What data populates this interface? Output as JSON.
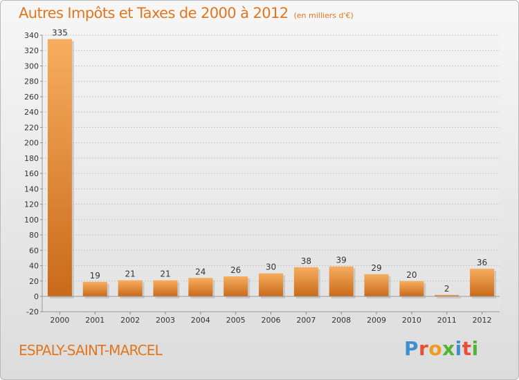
{
  "title": "Autres Impôts et Taxes de 2000 à 2012",
  "unit_note": "(en milliers d'€)",
  "city": "ESPALY-SAINT-MARCEL",
  "logo": {
    "text": "Proxiti",
    "letters": [
      "P",
      "r",
      "o",
      "x",
      "i",
      "t",
      "i"
    ]
  },
  "colors": {
    "accent": "#e2761d",
    "bar_light": "#f6ab5d",
    "bar_dark": "#c96a1a",
    "grid": "#c8c8c8"
  },
  "chart_data": {
    "type": "bar",
    "title": "Autres Impôts et Taxes de 2000 à 2012",
    "subtitle": "(en milliers d'€)",
    "categories": [
      "2000",
      "2001",
      "2002",
      "2003",
      "2004",
      "2005",
      "2006",
      "2007",
      "2008",
      "2009",
      "2010",
      "2011",
      "2012"
    ],
    "values": [
      335,
      19,
      21,
      21,
      24,
      26,
      30,
      38,
      39,
      29,
      20,
      2,
      36
    ],
    "data_labels": [
      "335",
      "19",
      "21",
      "21",
      "24",
      "26",
      "30",
      "38",
      "39",
      "29",
      "20",
      "2",
      "36"
    ],
    "yticks": [
      -20,
      0,
      20,
      40,
      60,
      80,
      100,
      120,
      140,
      160,
      180,
      200,
      220,
      240,
      260,
      280,
      300,
      320,
      340
    ],
    "ylim": [
      -20,
      340
    ],
    "xlabel": "",
    "ylabel": "",
    "grid": true,
    "legend": false
  }
}
